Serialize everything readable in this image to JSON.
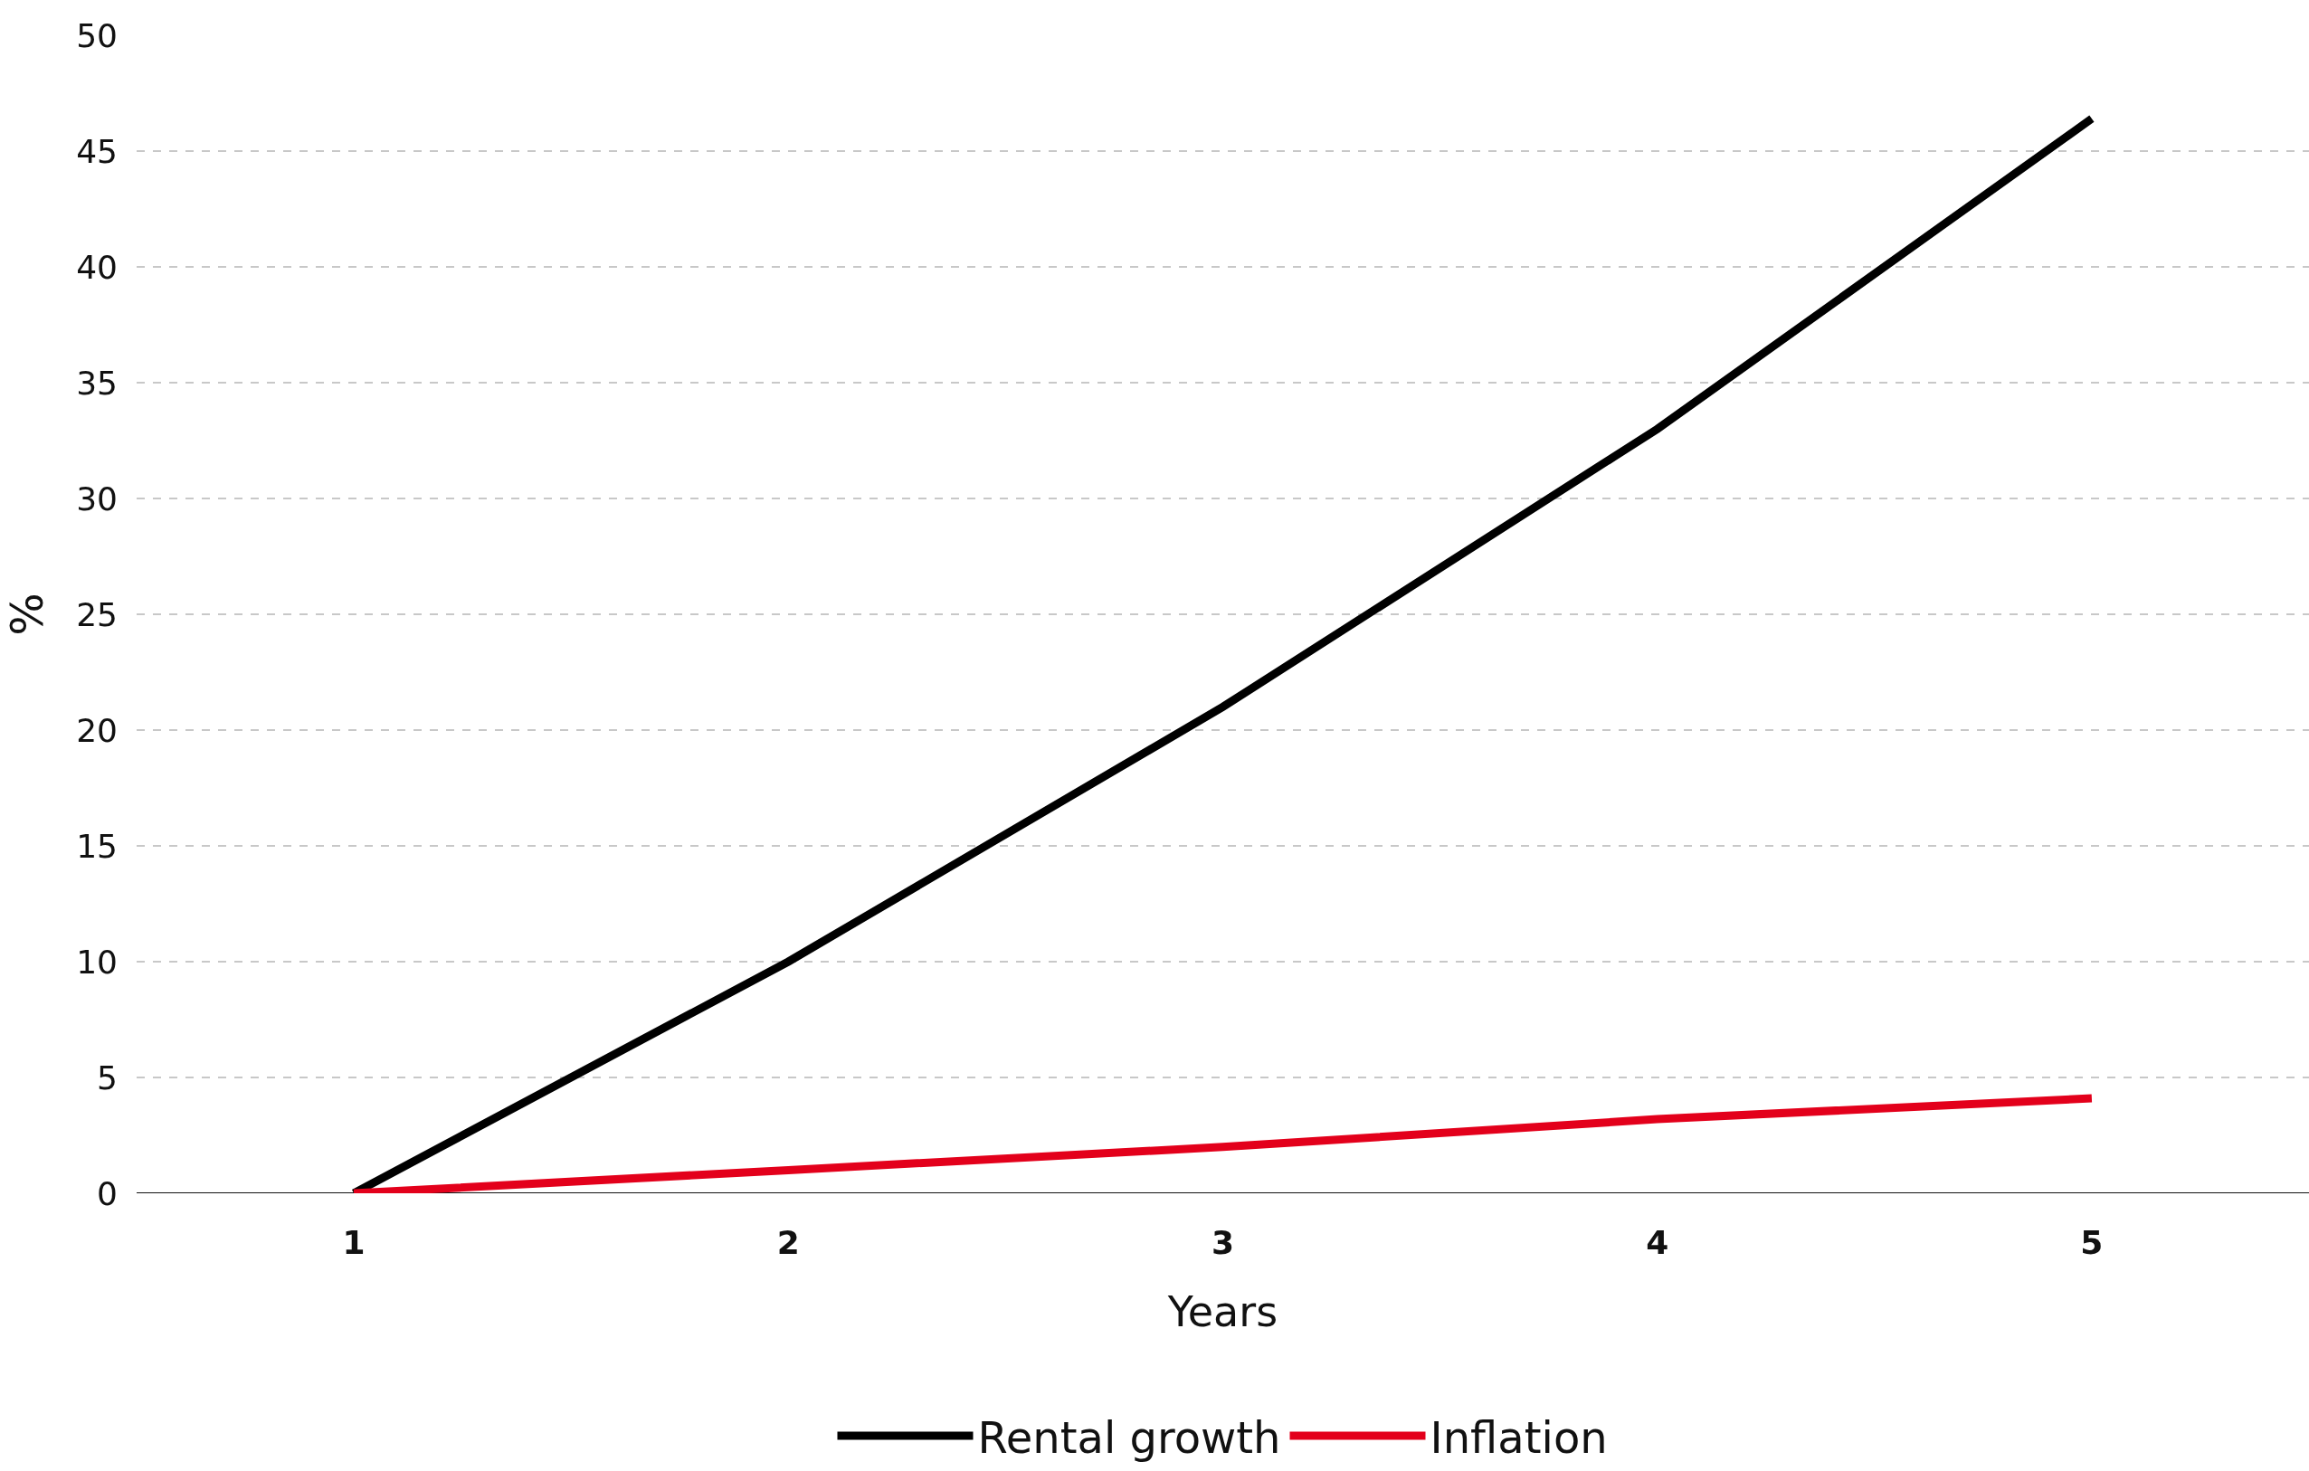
{
  "chart_data": {
    "type": "line",
    "xlabel": "Years",
    "ylabel": "%",
    "categories": [
      "1",
      "2",
      "3",
      "4",
      "5"
    ],
    "series": [
      {
        "name": "Rental growth",
        "color": "#000000",
        "values": [
          0,
          10,
          21,
          33,
          46.4
        ]
      },
      {
        "name": "Inflation",
        "color": "#e3001b",
        "values": [
          0,
          1,
          2,
          3.2,
          4.1
        ]
      }
    ],
    "ylim": [
      0,
      50
    ],
    "yticks": [
      0,
      5,
      10,
      15,
      20,
      25,
      30,
      35,
      40,
      45,
      50
    ],
    "grid": "y",
    "legend": "bottom",
    "marker": "none",
    "line_style": "solid"
  }
}
